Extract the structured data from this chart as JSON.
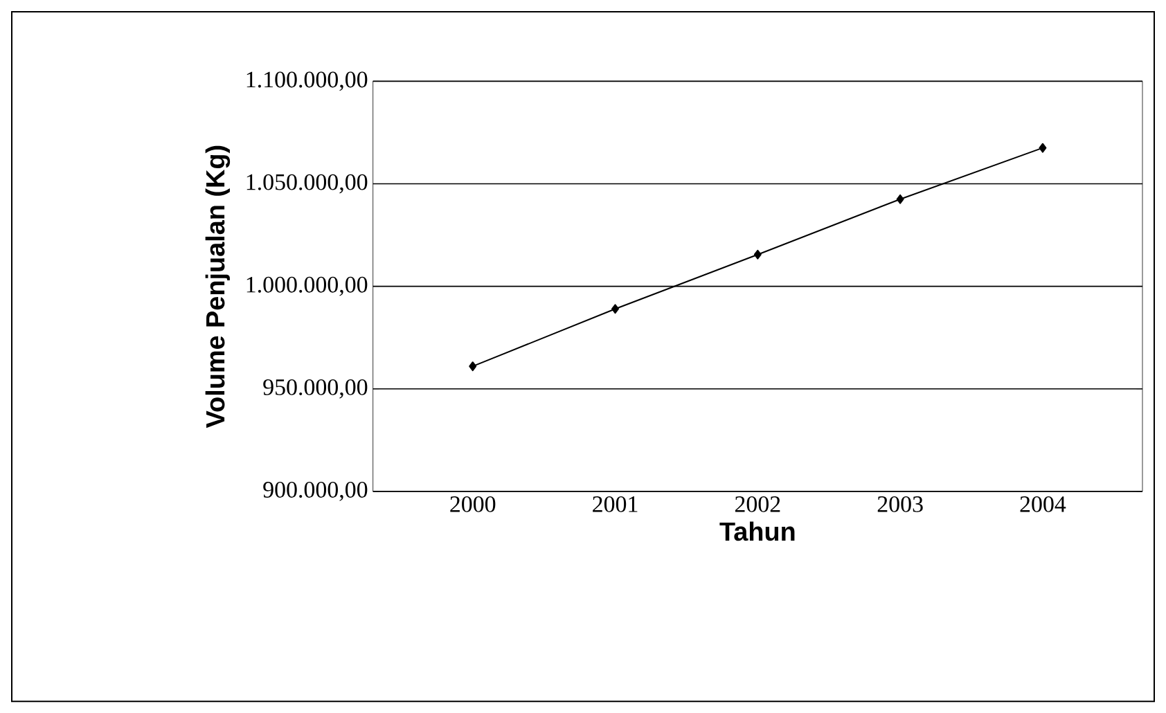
{
  "chart_data": {
    "type": "line",
    "xlabel": "Tahun",
    "ylabel": "Volume Penjualan (Kg)",
    "categories": [
      "2000",
      "2001",
      "2002",
      "2003",
      "2004"
    ],
    "series": [
      {
        "color": "#000000",
        "values": [
          961000,
          989000,
          1015500,
          1042500,
          1067500
        ]
      }
    ],
    "ylim": [
      900000,
      1100000
    ],
    "yticks": [
      {
        "value": 900000,
        "label": "900.000,00"
      },
      {
        "value": 950000,
        "label": "950.000,00"
      },
      {
        "value": 1000000,
        "label": "1.000.000,00"
      },
      {
        "value": 1050000,
        "label": "1.050.000,00"
      },
      {
        "value": 1100000,
        "label": "1.100.000,00"
      }
    ],
    "grid": "y",
    "marker": "diamond",
    "line_style": "solid"
  }
}
